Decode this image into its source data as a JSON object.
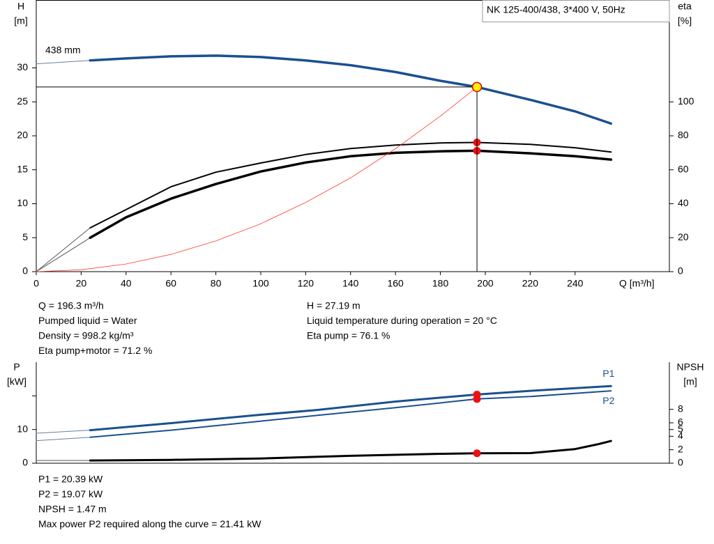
{
  "chart_data": [
    {
      "type": "line",
      "title": "NK 125-400/438, 3*400 V, 50Hz",
      "y_label": [
        "H",
        "[m]"
      ],
      "y2_label": [
        "eta",
        "[%]"
      ],
      "x_label": "Q [m³/h]",
      "annotation": "438 mm",
      "xlim": [
        0,
        282
      ],
      "xticks": [
        0,
        20,
        40,
        60,
        80,
        100,
        120,
        140,
        160,
        180,
        200,
        220,
        240
      ],
      "ylim": [
        0,
        40
      ],
      "yticks": [
        0,
        5,
        10,
        15,
        20,
        25,
        30
      ],
      "y2lim": [
        0,
        160
      ],
      "y2ticks": [
        0,
        20,
        40,
        60,
        80,
        100
      ],
      "series": [
        {
          "color": "#6a7f99",
          "width": 1,
          "x": [
            0,
            24
          ],
          "values": [
            30.6,
            31.1
          ]
        },
        {
          "color": "#1a5090",
          "width": 3.5,
          "x": [
            24,
            40,
            60,
            80,
            100,
            120,
            140,
            160,
            180,
            196.3,
            220,
            240,
            256
          ],
          "values": [
            31.1,
            31.4,
            31.7,
            31.8,
            31.6,
            31.1,
            30.4,
            29.4,
            28.1,
            27.19,
            25.3,
            23.6,
            21.8
          ]
        },
        {
          "color": "#555555",
          "width": 1,
          "axis": "y2",
          "x": [
            0,
            24
          ],
          "values": [
            0,
            25.8
          ]
        },
        {
          "color": "#555555",
          "width": 1,
          "axis": "y2",
          "x": [
            0,
            24
          ],
          "values": [
            0,
            20
          ]
        },
        {
          "color": "#000000",
          "width": 2,
          "axis": "y2",
          "x": [
            24,
            60,
            80,
            100,
            120,
            140,
            160,
            180,
            196.3,
            220,
            240,
            256
          ],
          "values": [
            25.8,
            50,
            58.6,
            64,
            69,
            72.5,
            74.6,
            75.8,
            76.1,
            75,
            73,
            70.5
          ]
        },
        {
          "color": "#000000",
          "width": 3.5,
          "axis": "y2",
          "x": [
            24,
            40,
            60,
            80,
            100,
            120,
            140,
            160,
            180,
            196.3,
            220,
            240,
            256
          ],
          "values": [
            20,
            32,
            43,
            51.6,
            59,
            64.3,
            68,
            70,
            70.9,
            71.2,
            69.7,
            68,
            66
          ]
        },
        {
          "color": "#ff3b30",
          "width": 0.8,
          "x": [
            0,
            20,
            40,
            60,
            80,
            100,
            120,
            140,
            160,
            180,
            196.3
          ],
          "values": [
            0,
            0.28,
            1.13,
            2.54,
            4.52,
            7.06,
            10.2,
            13.8,
            18.1,
            22.9,
            27.19
          ]
        },
        {
          "color": "#ee1111",
          "marker": true,
          "axis": "y2",
          "x": [
            196.3
          ],
          "values": [
            76.1
          ]
        },
        {
          "color": "#ee1111",
          "marker": true,
          "axis": "y2",
          "x": [
            196.3
          ],
          "values": [
            71.2
          ]
        },
        {
          "color": "#ffee00",
          "marker": true,
          "guides": true,
          "x": [
            196.3
          ],
          "values": [
            27.19
          ]
        }
      ],
      "info": [
        [
          "Q = 196.3 m³/h",
          "Pumped liquid = Water",
          "Density = 998.2 kg/m³",
          "Eta pump+motor = 71.2 %"
        ],
        [
          "H = 27.19 m",
          "Liquid temperature during operation = 20 °C",
          "Eta pump = 76.1 %"
        ]
      ]
    },
    {
      "type": "line",
      "y_label": [
        "P",
        "[kW]"
      ],
      "y2_label": [
        "NPSH",
        "[m]"
      ],
      "xlim": [
        0,
        282
      ],
      "ylim": [
        0,
        30
      ],
      "yticks": [
        0,
        10
      ],
      "yticks_unlabeled": [
        20
      ],
      "y2lim": [
        0,
        15
      ],
      "y2ticks": [
        0,
        2,
        4,
        5,
        6,
        8
      ],
      "series": [
        {
          "color": "#6a7f99",
          "width": 1,
          "x": [
            0,
            24
          ],
          "values": [
            8.9,
            9.8
          ]
        },
        {
          "name": "P1",
          "color": "#1a5090",
          "width": 3,
          "x": [
            24,
            60,
            100,
            125,
            160,
            196.3,
            220,
            256
          ],
          "values": [
            9.8,
            11.9,
            14.4,
            15.8,
            18.3,
            20.39,
            21.5,
            22.9
          ]
        },
        {
          "color": "#6a7f99",
          "width": 1,
          "x": [
            0,
            24
          ],
          "values": [
            6.7,
            7.7
          ]
        },
        {
          "name": "P2",
          "color": "#1a5090",
          "width": 2,
          "x": [
            24,
            60,
            100,
            125,
            160,
            196.3,
            220,
            256
          ],
          "values": [
            7.7,
            9.8,
            12.5,
            14.2,
            16.5,
            19.07,
            19.8,
            21.5
          ]
        },
        {
          "color": "#555555",
          "width": 1,
          "axis": "y2",
          "x": [
            0,
            24
          ],
          "values": [
            0.4,
            0.4
          ]
        },
        {
          "color": "#000000",
          "width": 3,
          "axis": "y2",
          "x": [
            24,
            60,
            100,
            140,
            180,
            196.3,
            220,
            240,
            250,
            256
          ],
          "values": [
            0.4,
            0.5,
            0.7,
            1.1,
            1.4,
            1.47,
            1.5,
            2.1,
            2.8,
            3.3
          ]
        },
        {
          "color": "#ee1111",
          "marker": true,
          "x": [
            196.3
          ],
          "values": [
            20.39
          ]
        },
        {
          "color": "#ee1111",
          "marker": true,
          "x": [
            196.3
          ],
          "values": [
            19.07
          ]
        },
        {
          "color": "#ee1111",
          "marker": true,
          "axis": "y2",
          "x": [
            196.3
          ],
          "values": [
            1.47
          ]
        }
      ],
      "info": [
        [
          "P1 = 20.39 kW",
          "P2 = 19.07 kW",
          "NPSH = 1.47 m",
          "Max power P2 required along the curve = 21.41 kW"
        ]
      ]
    }
  ]
}
